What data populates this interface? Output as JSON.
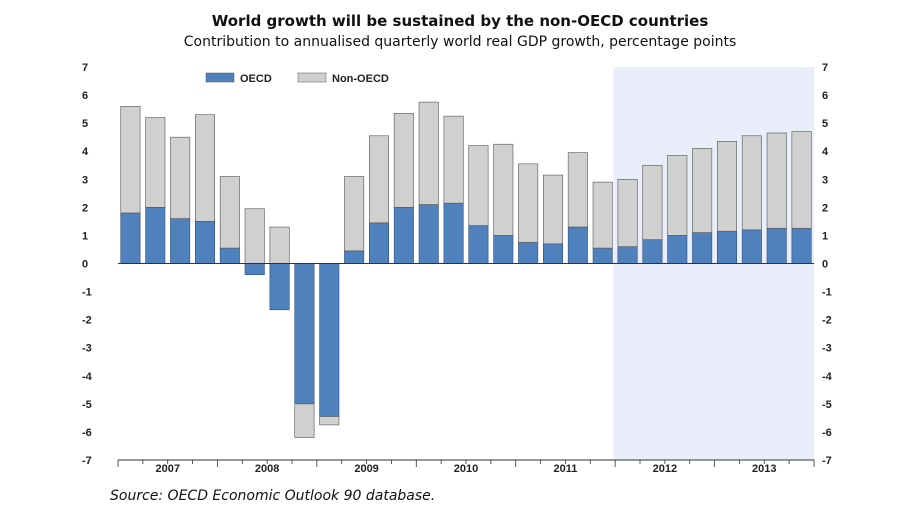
{
  "title": "World growth will be sustained by the non-OECD countries",
  "subtitle": "Contribution to annualised quarterly world real GDP growth, percentage points",
  "source": "Source: OECD Economic Outlook 90 database.",
  "colors": {
    "oecd": "#4f81bd",
    "non_oecd": "#d0d0d0",
    "projection_shade": "#eaeefa"
  },
  "chart_data": {
    "type": "bar",
    "stacked": true,
    "ylim": [
      -7,
      7
    ],
    "yticks": [
      7,
      6,
      5,
      4,
      3,
      2,
      1,
      0,
      -1,
      -2,
      -3,
      -4,
      -5,
      -6,
      -7
    ],
    "year_labels": [
      "2007",
      "2008",
      "2009",
      "2010",
      "2011",
      "2012",
      "2013"
    ],
    "legend": {
      "position": "top-left",
      "entries": [
        "OECD",
        "Non-OECD"
      ]
    },
    "projection_shaded_from_quarter": 20,
    "series": [
      {
        "name": "OECD",
        "values": [
          1.8,
          2.0,
          1.6,
          1.5,
          0.55,
          -0.4,
          -1.65,
          -5.0,
          -5.45,
          0.45,
          1.45,
          2.0,
          2.1,
          2.15,
          1.35,
          1.0,
          0.75,
          0.7,
          1.3,
          0.55,
          0.6,
          0.85,
          1.0,
          1.1,
          1.15,
          1.2,
          1.25,
          1.25
        ]
      },
      {
        "name": "Non-OECD",
        "values": [
          3.8,
          3.2,
          2.9,
          3.8,
          2.55,
          1.95,
          1.3,
          -1.2,
          -0.3,
          2.65,
          3.1,
          3.35,
          3.65,
          3.1,
          2.85,
          3.25,
          2.8,
          2.45,
          2.65,
          2.35,
          2.4,
          2.65,
          2.85,
          3.0,
          3.2,
          3.35,
          3.4,
          3.45
        ]
      }
    ]
  }
}
